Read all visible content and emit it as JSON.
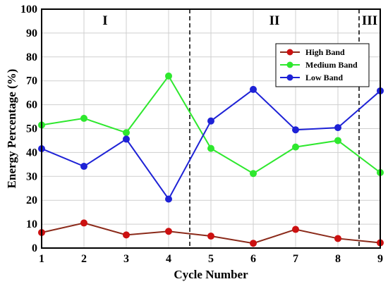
{
  "chart_data": {
    "type": "line",
    "xlabel": "Cycle Number",
    "ylabel": "Energy Percentage (%)",
    "x": [
      1,
      2,
      3,
      4,
      5,
      6,
      7,
      8,
      9
    ],
    "xlim": [
      1,
      9
    ],
    "ylim": [
      0,
      100
    ],
    "xticks": [
      1,
      2,
      3,
      4,
      5,
      6,
      7,
      8,
      9
    ],
    "yticks": [
      0,
      10,
      20,
      30,
      40,
      50,
      60,
      70,
      80,
      90,
      100
    ],
    "grid": true,
    "legend_position": "top-right",
    "series": [
      {
        "name": "High Band",
        "color": "#cc1111",
        "line_color": "#8b2a1a",
        "values": [
          6.5,
          10.5,
          5.5,
          7,
          5,
          2,
          7.8,
          4,
          2.2
        ]
      },
      {
        "name": "Medium Band",
        "color": "#2ee82e",
        "line_color": "#2ee82e",
        "values": [
          51.5,
          54.3,
          48.3,
          72,
          41.7,
          31.2,
          42.3,
          45,
          31.6
        ]
      },
      {
        "name": "Low Band",
        "color": "#1e22d6",
        "line_color": "#1e22d6",
        "values": [
          41.6,
          34.2,
          45.6,
          20.5,
          53.2,
          66.4,
          49.5,
          50.4,
          65.8
        ]
      }
    ],
    "dividers": [
      4.5,
      8.5
    ],
    "regions": [
      {
        "label": "I",
        "x": 2.5
      },
      {
        "label": "II",
        "x": 6.5
      },
      {
        "label": "III",
        "x": 8.75
      }
    ]
  }
}
